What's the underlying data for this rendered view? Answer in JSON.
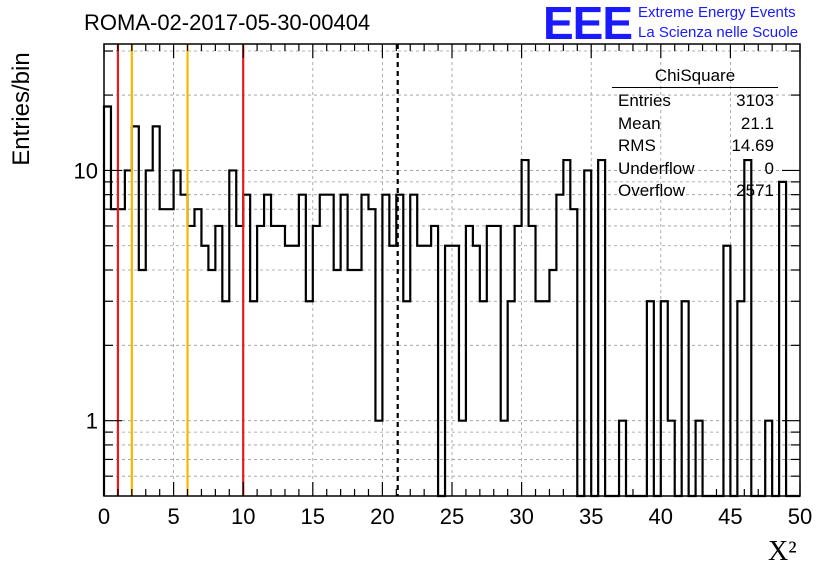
{
  "header": {
    "title": "ROMA-02-2017-05-30-00404",
    "logo_text": "EEE",
    "logo_line1": "Extreme Energy Events",
    "logo_line2": "La Scienza nelle Scuole",
    "logo_color": "#1a1aff"
  },
  "stats_box": {
    "title": "ChiSquare",
    "rows": [
      {
        "label": "Entries",
        "value": "3103"
      },
      {
        "label": "Mean",
        "value": "21.1"
      },
      {
        "label": "RMS",
        "value": "14.69"
      },
      {
        "label": "Underflow",
        "value": "0"
      },
      {
        "label": "Overflow",
        "value": "2571"
      }
    ]
  },
  "chart_data": {
    "type": "histogram",
    "title": "ROMA-02-2017-05-30-00404",
    "xlabel": "X²",
    "ylabel": "Entries/bin",
    "xlim": [
      0,
      50
    ],
    "ylim": [
      0.5,
      32
    ],
    "y_scale": "log",
    "grid": true,
    "bin_width": 0.5,
    "x_ticks": [
      "0",
      "5",
      "10",
      "15",
      "20",
      "25",
      "30",
      "35",
      "40",
      "45",
      "50"
    ],
    "y_ticks": [
      "1",
      "10"
    ],
    "bin_counts": [
      18,
      7,
      7,
      10,
      15,
      4,
      10,
      15,
      7,
      7,
      10,
      8,
      6,
      7,
      5,
      4,
      6,
      3,
      10,
      6,
      8,
      3,
      6,
      8,
      6,
      6,
      5,
      5,
      8,
      3,
      6,
      8,
      8,
      4,
      8,
      4,
      4,
      8,
      7,
      1,
      8,
      5,
      8,
      3,
      8,
      5,
      5,
      6,
      0.3,
      5,
      5,
      1,
      6,
      5,
      3,
      6,
      6,
      1,
      3,
      6,
      11,
      6,
      3,
      3,
      4,
      8,
      11,
      7,
      0.3,
      10,
      0.3,
      11,
      0.3,
      0.3,
      1,
      0.3,
      0.3,
      0.3,
      3,
      0.3,
      3,
      1,
      0.3,
      3,
      0.3,
      1,
      0.3,
      0.3,
      0.3,
      5,
      0.3,
      3,
      11,
      0.3,
      0.3,
      1,
      0.3,
      9,
      0.3,
      0.3
    ],
    "vertical_lines": [
      {
        "x": 1.0,
        "color": "#e8191c",
        "style": "solid"
      },
      {
        "x": 2.0,
        "color": "#f5b800",
        "style": "solid"
      },
      {
        "x": 6.0,
        "color": "#f5b800",
        "style": "solid"
      },
      {
        "x": 10.0,
        "color": "#e8191c",
        "style": "solid"
      },
      {
        "x": 21.1,
        "color": "#000000",
        "style": "dashed"
      }
    ]
  }
}
